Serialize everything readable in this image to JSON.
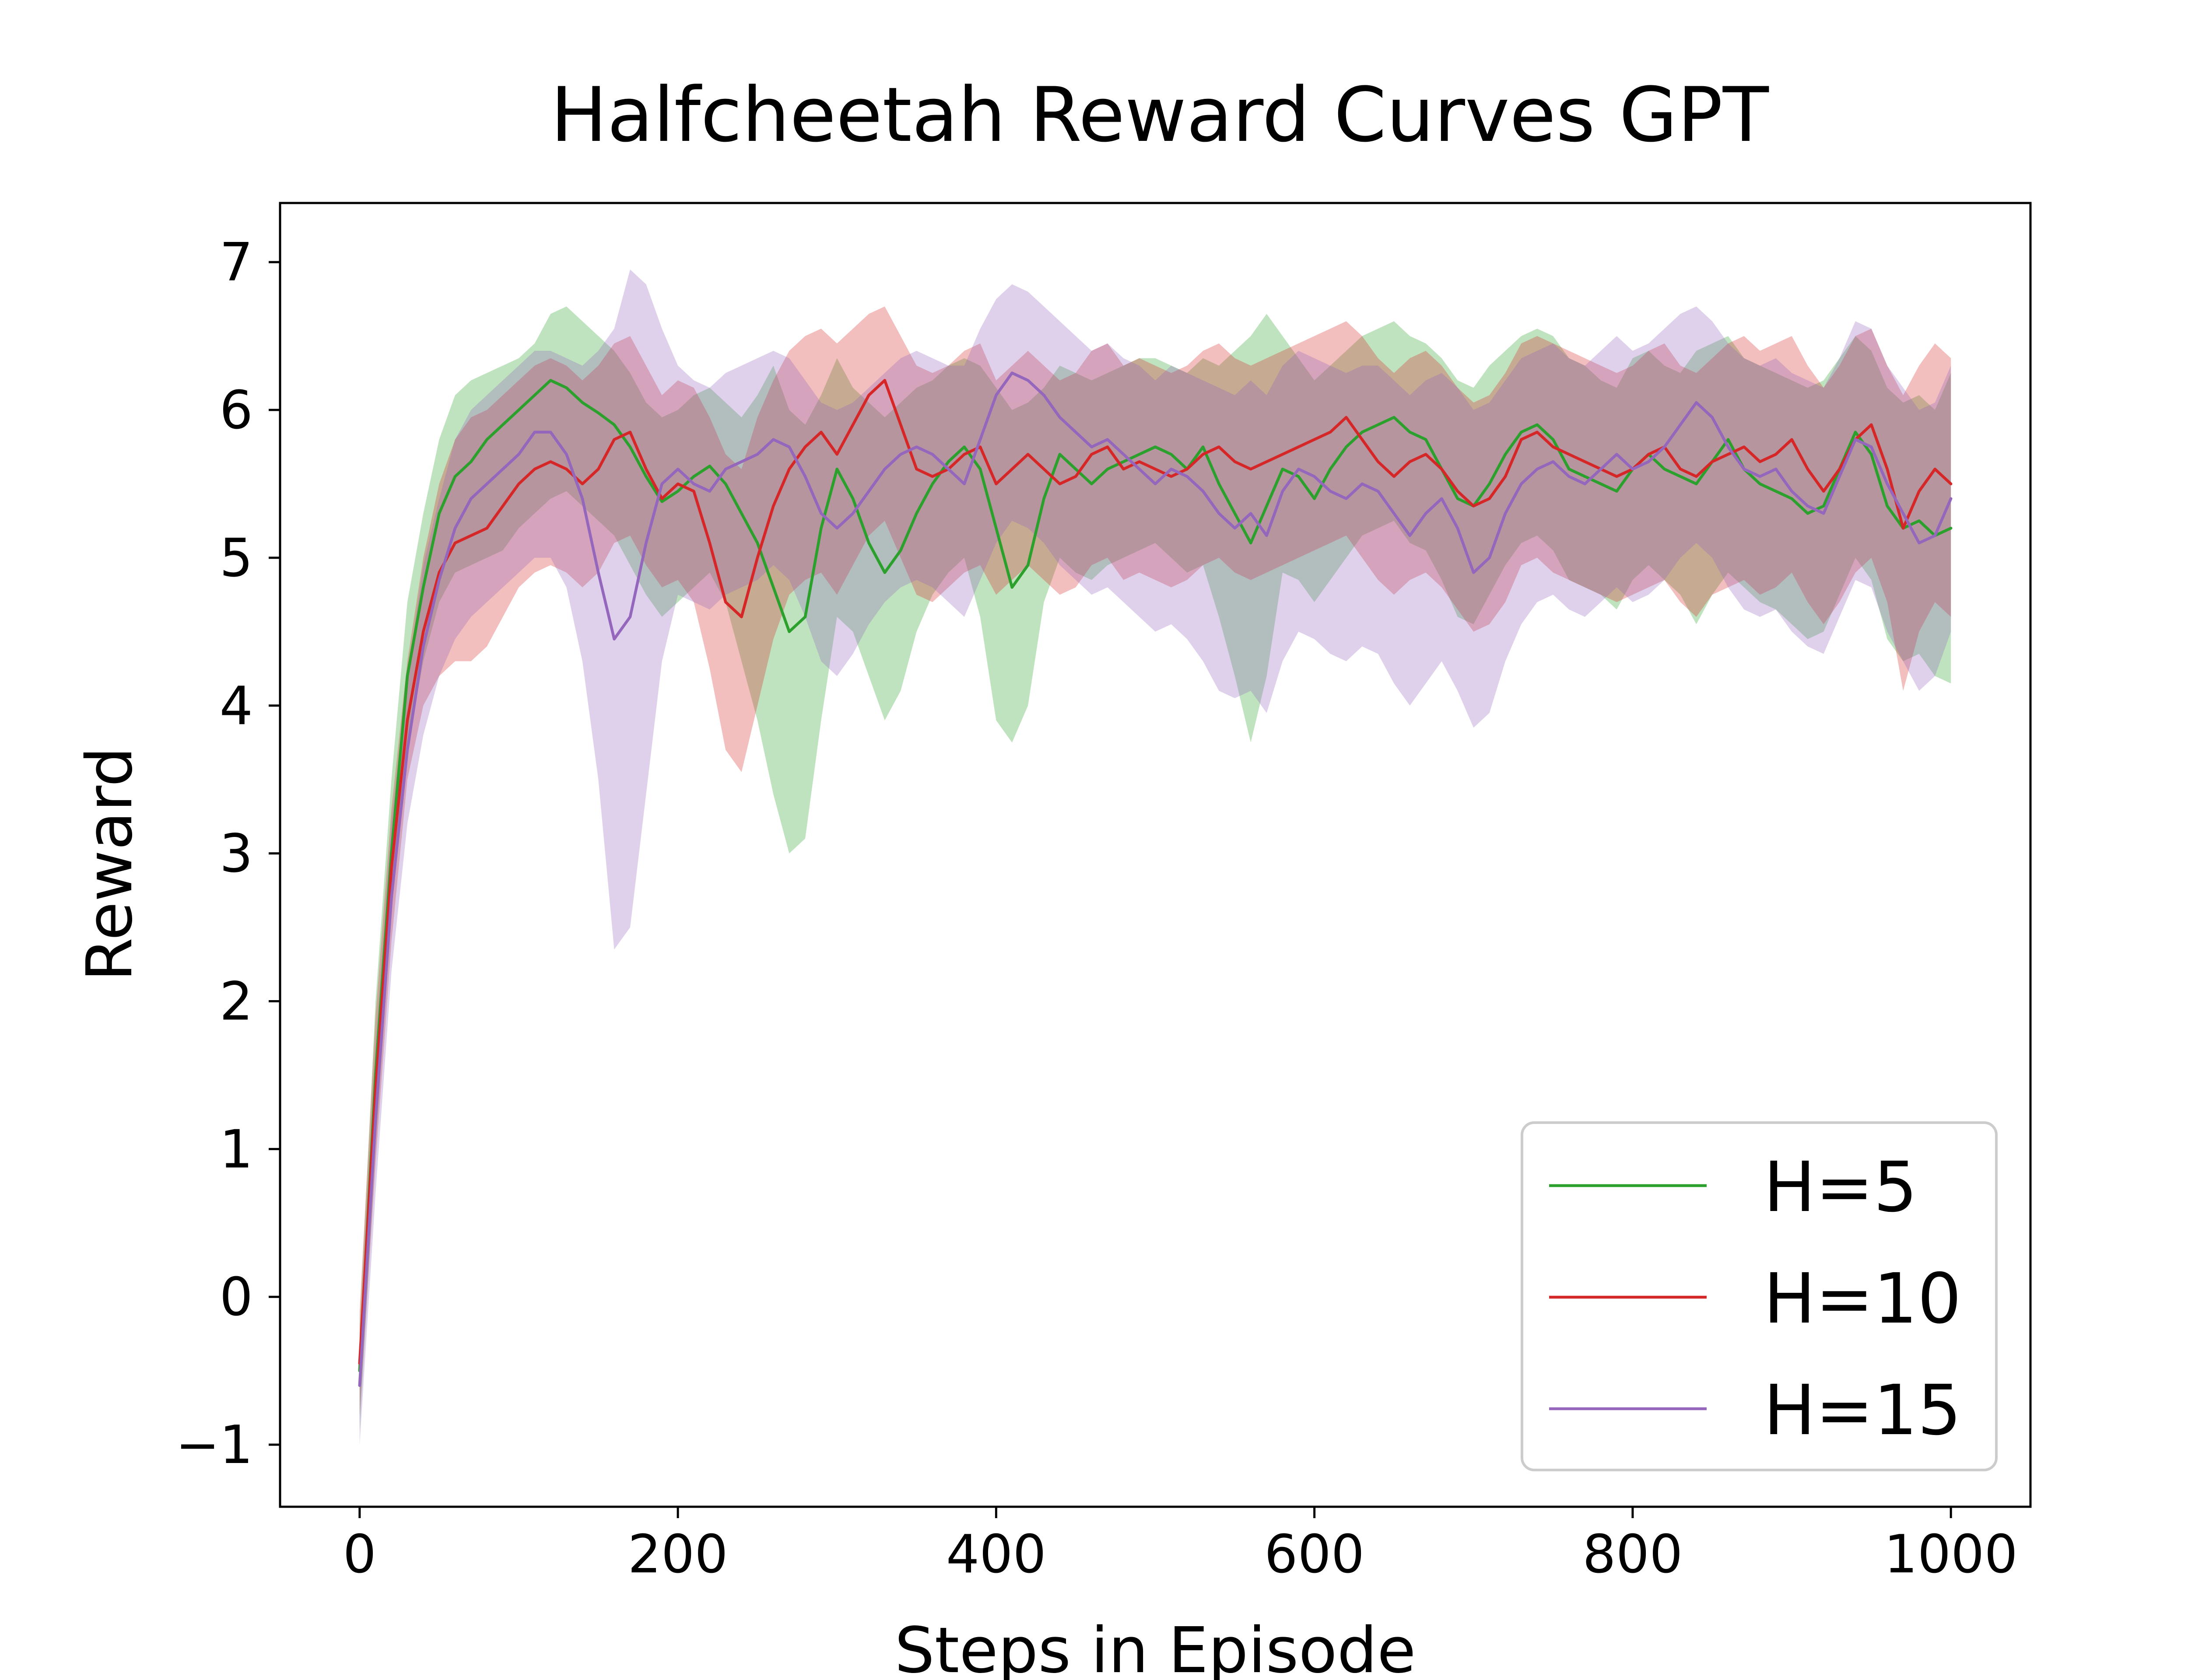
{
  "chart_data": {
    "type": "line",
    "title": "Halfcheetah Reward Curves GPT",
    "xlabel": "Steps in Episode",
    "ylabel": "Reward",
    "xlim": [
      -50,
      1050
    ],
    "ylim": [
      -1.42,
      7.4
    ],
    "xticks": [
      0,
      200,
      400,
      600,
      800,
      1000
    ],
    "yticks": [
      -1,
      0,
      1,
      2,
      3,
      4,
      5,
      6,
      7
    ],
    "xtick_labels": [
      "0",
      "200",
      "400",
      "600",
      "800",
      "1000"
    ],
    "ytick_labels": [
      "−1",
      "0",
      "1",
      "2",
      "3",
      "4",
      "5",
      "6",
      "7"
    ],
    "grid": false,
    "legend_position": "lower-right",
    "shaded_band": "min-max range around each mean curve",
    "series": [
      {
        "name": "H=5",
        "color": "#2ca02c",
        "x": [
          0,
          10,
          20,
          30,
          40,
          50,
          60,
          70,
          80,
          90,
          100,
          110,
          120,
          130,
          140,
          150,
          160,
          170,
          180,
          190,
          200,
          210,
          220,
          230,
          240,
          250,
          260,
          270,
          280,
          290,
          300,
          310,
          320,
          330,
          340,
          350,
          360,
          370,
          380,
          390,
          400,
          410,
          420,
          430,
          440,
          450,
          460,
          470,
          480,
          490,
          500,
          510,
          520,
          530,
          540,
          550,
          560,
          570,
          580,
          590,
          600,
          610,
          620,
          630,
          640,
          650,
          660,
          670,
          680,
          690,
          700,
          710,
          720,
          730,
          740,
          750,
          760,
          770,
          780,
          790,
          800,
          810,
          820,
          830,
          840,
          850,
          860,
          870,
          880,
          890,
          900,
          910,
          920,
          930,
          940,
          950,
          960,
          970,
          980,
          990,
          1000
        ],
        "values": [
          -0.5,
          1.5,
          3.0,
          4.2,
          4.8,
          5.3,
          5.55,
          5.65,
          5.8,
          5.9,
          6.0,
          6.1,
          6.2,
          6.15,
          6.05,
          5.98,
          5.9,
          5.75,
          5.55,
          5.38,
          5.45,
          5.55,
          5.62,
          5.5,
          5.3,
          5.1,
          4.8,
          4.5,
          4.6,
          5.2,
          5.6,
          5.4,
          5.1,
          4.9,
          5.05,
          5.3,
          5.5,
          5.65,
          5.75,
          5.6,
          5.2,
          4.8,
          4.95,
          5.4,
          5.7,
          5.6,
          5.5,
          5.6,
          5.65,
          5.7,
          5.75,
          5.7,
          5.6,
          5.75,
          5.5,
          5.3,
          5.1,
          5.35,
          5.6,
          5.55,
          5.4,
          5.6,
          5.75,
          5.85,
          5.9,
          5.95,
          5.85,
          5.8,
          5.6,
          5.4,
          5.35,
          5.5,
          5.7,
          5.85,
          5.9,
          5.8,
          5.6,
          5.55,
          5.5,
          5.45,
          5.6,
          5.7,
          5.6,
          5.55,
          5.5,
          5.65,
          5.8,
          5.6,
          5.5,
          5.45,
          5.4,
          5.3,
          5.35,
          5.6,
          5.85,
          5.7,
          5.35,
          5.2,
          5.25,
          5.15,
          5.2
        ],
        "lower": [
          -0.9,
          1.0,
          2.6,
          3.7,
          4.3,
          4.7,
          4.9,
          4.95,
          5.0,
          5.05,
          5.2,
          5.3,
          5.4,
          5.45,
          5.35,
          5.25,
          5.15,
          4.95,
          4.75,
          4.6,
          4.7,
          4.8,
          4.9,
          4.7,
          4.3,
          3.9,
          3.4,
          3.0,
          3.1,
          3.9,
          4.6,
          4.5,
          4.2,
          3.9,
          4.1,
          4.5,
          4.75,
          4.9,
          5.0,
          4.6,
          3.9,
          3.75,
          4.0,
          4.7,
          5.0,
          4.9,
          4.85,
          4.95,
          5.0,
          5.05,
          5.1,
          5.0,
          4.9,
          4.95,
          4.6,
          4.2,
          3.75,
          4.2,
          4.9,
          4.85,
          4.7,
          4.85,
          5.0,
          5.15,
          5.2,
          5.25,
          5.1,
          5.05,
          4.85,
          4.6,
          4.55,
          4.75,
          4.95,
          5.1,
          5.15,
          5.05,
          4.85,
          4.8,
          4.75,
          4.65,
          4.85,
          4.95,
          4.85,
          4.75,
          4.55,
          4.75,
          4.9,
          4.8,
          4.7,
          4.65,
          4.55,
          4.45,
          4.5,
          4.75,
          5.0,
          4.85,
          4.45,
          4.3,
          4.35,
          4.2,
          4.15
        ],
        "upper": [
          -0.2,
          2.0,
          3.5,
          4.7,
          5.3,
          5.8,
          6.1,
          6.2,
          6.25,
          6.3,
          6.35,
          6.45,
          6.65,
          6.7,
          6.6,
          6.5,
          6.4,
          6.25,
          6.05,
          5.95,
          6.0,
          6.1,
          6.15,
          6.05,
          5.95,
          6.1,
          6.3,
          6.0,
          5.9,
          6.1,
          6.35,
          6.15,
          6.05,
          5.95,
          6.05,
          6.15,
          6.2,
          6.3,
          6.35,
          6.3,
          6.15,
          6.0,
          6.05,
          6.15,
          6.3,
          6.25,
          6.2,
          6.25,
          6.3,
          6.35,
          6.35,
          6.3,
          6.25,
          6.35,
          6.3,
          6.4,
          6.5,
          6.65,
          6.5,
          6.35,
          6.2,
          6.3,
          6.4,
          6.5,
          6.55,
          6.6,
          6.5,
          6.45,
          6.35,
          6.2,
          6.15,
          6.3,
          6.4,
          6.5,
          6.55,
          6.5,
          6.35,
          6.3,
          6.2,
          6.15,
          6.35,
          6.4,
          6.3,
          6.25,
          6.4,
          6.45,
          6.5,
          6.35,
          6.3,
          6.25,
          6.2,
          6.15,
          6.2,
          6.35,
          6.5,
          6.4,
          6.15,
          6.05,
          6.1,
          6.0,
          6.25
        ]
      },
      {
        "name": "H=10",
        "color": "#d62728",
        "x": [
          0,
          10,
          20,
          30,
          40,
          50,
          60,
          70,
          80,
          90,
          100,
          110,
          120,
          130,
          140,
          150,
          160,
          170,
          180,
          190,
          200,
          210,
          220,
          230,
          240,
          250,
          260,
          270,
          280,
          290,
          300,
          310,
          320,
          330,
          340,
          350,
          360,
          370,
          380,
          390,
          400,
          410,
          420,
          430,
          440,
          450,
          460,
          470,
          480,
          490,
          500,
          510,
          520,
          530,
          540,
          550,
          560,
          570,
          580,
          590,
          600,
          610,
          620,
          630,
          640,
          650,
          660,
          670,
          680,
          690,
          700,
          710,
          720,
          730,
          740,
          750,
          760,
          770,
          780,
          790,
          800,
          810,
          820,
          830,
          840,
          850,
          860,
          870,
          880,
          890,
          900,
          910,
          920,
          930,
          940,
          950,
          960,
          970,
          980,
          990,
          1000
        ],
        "values": [
          -0.45,
          1.4,
          2.9,
          3.9,
          4.5,
          4.9,
          5.1,
          5.15,
          5.2,
          5.35,
          5.5,
          5.6,
          5.65,
          5.6,
          5.5,
          5.6,
          5.8,
          5.85,
          5.6,
          5.4,
          5.5,
          5.45,
          5.1,
          4.7,
          4.6,
          5.0,
          5.35,
          5.6,
          5.75,
          5.85,
          5.7,
          5.9,
          6.1,
          6.2,
          5.9,
          5.6,
          5.55,
          5.6,
          5.7,
          5.75,
          5.5,
          5.6,
          5.7,
          5.6,
          5.5,
          5.55,
          5.7,
          5.75,
          5.6,
          5.65,
          5.6,
          5.55,
          5.6,
          5.7,
          5.75,
          5.65,
          5.6,
          5.65,
          5.7,
          5.75,
          5.8,
          5.85,
          5.95,
          5.8,
          5.65,
          5.55,
          5.65,
          5.7,
          5.6,
          5.45,
          5.35,
          5.4,
          5.55,
          5.8,
          5.85,
          5.75,
          5.7,
          5.65,
          5.6,
          5.55,
          5.6,
          5.7,
          5.75,
          5.6,
          5.55,
          5.65,
          5.7,
          5.75,
          5.65,
          5.7,
          5.8,
          5.6,
          5.45,
          5.6,
          5.8,
          5.9,
          5.6,
          5.2,
          5.45,
          5.6,
          5.5
        ],
        "lower": [
          -0.8,
          0.9,
          2.4,
          3.5,
          4.0,
          4.2,
          4.3,
          4.3,
          4.4,
          4.6,
          4.8,
          4.9,
          4.95,
          4.9,
          4.8,
          4.9,
          5.1,
          5.15,
          4.95,
          4.8,
          4.85,
          4.7,
          4.25,
          3.7,
          3.55,
          4.0,
          4.45,
          4.75,
          4.85,
          4.9,
          4.75,
          4.95,
          5.15,
          5.25,
          5.0,
          4.75,
          4.7,
          4.8,
          4.9,
          4.95,
          4.75,
          4.85,
          4.95,
          4.85,
          4.75,
          4.8,
          4.95,
          5.0,
          4.85,
          4.9,
          4.85,
          4.8,
          4.85,
          4.95,
          5.0,
          4.9,
          4.85,
          4.9,
          4.95,
          5.0,
          5.05,
          5.1,
          5.15,
          5.0,
          4.85,
          4.75,
          4.85,
          4.9,
          4.8,
          4.65,
          4.5,
          4.55,
          4.7,
          4.95,
          5.0,
          4.9,
          4.85,
          4.8,
          4.75,
          4.7,
          4.75,
          4.8,
          4.85,
          4.7,
          4.6,
          4.75,
          4.8,
          4.85,
          4.75,
          4.8,
          4.9,
          4.7,
          4.55,
          4.7,
          4.9,
          5.0,
          4.7,
          4.1,
          4.5,
          4.7,
          4.6
        ],
        "upper": [
          -0.1,
          1.9,
          3.3,
          4.3,
          5.0,
          5.5,
          5.8,
          5.95,
          6.0,
          6.1,
          6.2,
          6.3,
          6.35,
          6.3,
          6.2,
          6.3,
          6.45,
          6.5,
          6.3,
          6.1,
          6.2,
          6.15,
          5.95,
          5.7,
          5.6,
          5.95,
          6.2,
          6.4,
          6.5,
          6.55,
          6.45,
          6.55,
          6.65,
          6.7,
          6.5,
          6.3,
          6.25,
          6.3,
          6.4,
          6.45,
          6.2,
          6.3,
          6.4,
          6.3,
          6.2,
          6.25,
          6.4,
          6.45,
          6.3,
          6.35,
          6.3,
          6.25,
          6.3,
          6.4,
          6.45,
          6.35,
          6.3,
          6.35,
          6.4,
          6.45,
          6.5,
          6.55,
          6.6,
          6.5,
          6.35,
          6.25,
          6.35,
          6.4,
          6.3,
          6.15,
          6.05,
          6.1,
          6.25,
          6.45,
          6.5,
          6.45,
          6.4,
          6.35,
          6.3,
          6.25,
          6.3,
          6.4,
          6.45,
          6.3,
          6.25,
          6.35,
          6.45,
          6.5,
          6.4,
          6.45,
          6.5,
          6.3,
          6.15,
          6.3,
          6.5,
          6.55,
          6.3,
          6.1,
          6.3,
          6.45,
          6.35
        ]
      },
      {
        "name": "H=15",
        "color": "#9467bd",
        "x": [
          0,
          10,
          20,
          30,
          40,
          50,
          60,
          70,
          80,
          90,
          100,
          110,
          120,
          130,
          140,
          150,
          160,
          170,
          180,
          190,
          200,
          210,
          220,
          230,
          240,
          250,
          260,
          270,
          280,
          290,
          300,
          310,
          320,
          330,
          340,
          350,
          360,
          370,
          380,
          390,
          400,
          410,
          420,
          430,
          440,
          450,
          460,
          470,
          480,
          490,
          500,
          510,
          520,
          530,
          540,
          550,
          560,
          570,
          580,
          590,
          600,
          610,
          620,
          630,
          640,
          650,
          660,
          670,
          680,
          690,
          700,
          710,
          720,
          730,
          740,
          750,
          760,
          770,
          780,
          790,
          800,
          810,
          820,
          830,
          840,
          850,
          860,
          870,
          880,
          890,
          900,
          910,
          920,
          930,
          940,
          950,
          960,
          970,
          980,
          990,
          1000
        ],
        "values": [
          -0.6,
          1.2,
          2.7,
          3.7,
          4.4,
          4.85,
          5.2,
          5.4,
          5.5,
          5.6,
          5.7,
          5.85,
          5.85,
          5.7,
          5.4,
          4.9,
          4.45,
          4.6,
          5.1,
          5.5,
          5.6,
          5.5,
          5.45,
          5.6,
          5.65,
          5.7,
          5.8,
          5.75,
          5.55,
          5.3,
          5.2,
          5.3,
          5.45,
          5.6,
          5.7,
          5.75,
          5.7,
          5.6,
          5.5,
          5.8,
          6.1,
          6.25,
          6.2,
          6.1,
          5.95,
          5.85,
          5.75,
          5.8,
          5.7,
          5.6,
          5.5,
          5.6,
          5.55,
          5.45,
          5.3,
          5.2,
          5.3,
          5.15,
          5.45,
          5.6,
          5.55,
          5.45,
          5.4,
          5.5,
          5.45,
          5.3,
          5.15,
          5.3,
          5.4,
          5.2,
          4.9,
          5.0,
          5.3,
          5.5,
          5.6,
          5.65,
          5.55,
          5.5,
          5.6,
          5.7,
          5.6,
          5.65,
          5.75,
          5.9,
          6.05,
          5.95,
          5.75,
          5.6,
          5.55,
          5.6,
          5.45,
          5.35,
          5.3,
          5.55,
          5.8,
          5.75,
          5.5,
          5.3,
          5.1,
          5.15,
          5.4
        ],
        "lower": [
          -1.0,
          0.7,
          2.2,
          3.2,
          3.8,
          4.2,
          4.45,
          4.6,
          4.7,
          4.8,
          4.9,
          5.0,
          5.0,
          4.8,
          4.3,
          3.5,
          2.35,
          2.5,
          3.4,
          4.3,
          4.75,
          4.7,
          4.65,
          4.75,
          4.8,
          4.85,
          4.95,
          4.85,
          4.6,
          4.3,
          4.2,
          4.35,
          4.55,
          4.7,
          4.8,
          4.85,
          4.8,
          4.7,
          4.6,
          4.85,
          5.1,
          5.25,
          5.2,
          5.1,
          4.95,
          4.85,
          4.75,
          4.8,
          4.7,
          4.6,
          4.5,
          4.55,
          4.45,
          4.3,
          4.1,
          4.05,
          4.1,
          3.95,
          4.3,
          4.5,
          4.45,
          4.35,
          4.3,
          4.4,
          4.35,
          4.15,
          4.0,
          4.15,
          4.3,
          4.1,
          3.85,
          3.95,
          4.3,
          4.55,
          4.7,
          4.75,
          4.65,
          4.6,
          4.7,
          4.8,
          4.7,
          4.75,
          4.85,
          5.0,
          5.1,
          5.0,
          4.8,
          4.65,
          4.6,
          4.65,
          4.5,
          4.4,
          4.35,
          4.6,
          4.85,
          4.8,
          4.5,
          4.3,
          4.1,
          4.2,
          4.5
        ],
        "upper": [
          -0.3,
          1.7,
          3.2,
          4.2,
          4.95,
          5.4,
          5.8,
          6.0,
          6.1,
          6.2,
          6.3,
          6.4,
          6.4,
          6.35,
          6.3,
          6.4,
          6.55,
          6.95,
          6.85,
          6.55,
          6.3,
          6.2,
          6.15,
          6.25,
          6.3,
          6.35,
          6.4,
          6.35,
          6.2,
          6.05,
          6.0,
          6.05,
          6.15,
          6.25,
          6.35,
          6.4,
          6.35,
          6.3,
          6.3,
          6.55,
          6.75,
          6.85,
          6.8,
          6.7,
          6.6,
          6.5,
          6.4,
          6.45,
          6.35,
          6.3,
          6.2,
          6.3,
          6.25,
          6.2,
          6.15,
          6.1,
          6.2,
          6.1,
          6.3,
          6.4,
          6.35,
          6.3,
          6.25,
          6.3,
          6.3,
          6.2,
          6.1,
          6.2,
          6.25,
          6.15,
          6.0,
          6.05,
          6.2,
          6.35,
          6.4,
          6.45,
          6.35,
          6.3,
          6.4,
          6.5,
          6.4,
          6.45,
          6.55,
          6.65,
          6.7,
          6.6,
          6.45,
          6.35,
          6.3,
          6.35,
          6.25,
          6.2,
          6.15,
          6.35,
          6.6,
          6.55,
          6.3,
          6.15,
          6.0,
          6.05,
          6.3
        ]
      }
    ]
  }
}
